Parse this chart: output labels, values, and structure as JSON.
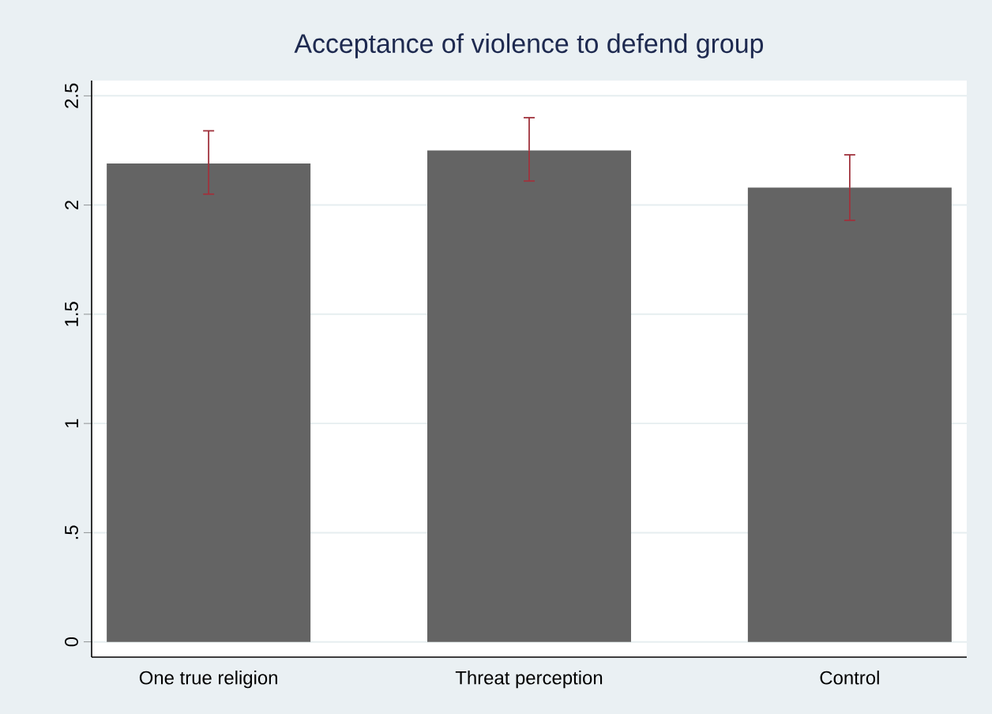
{
  "chart_data": {
    "type": "bar",
    "title": "Acceptance of violence to defend group",
    "categories": [
      "One true religion",
      "Threat perception",
      "Control"
    ],
    "values": [
      2.19,
      2.25,
      2.08
    ],
    "errors": [
      [
        2.05,
        2.34
      ],
      [
        2.11,
        2.4
      ],
      [
        1.93,
        2.23
      ]
    ],
    "color": "#646464",
    "ylim": [
      -0.07,
      2.57
    ],
    "yticks": [
      0,
      {
        "value": 0.5,
        "label": ".5"
      },
      1,
      1.5,
      2,
      2.5
    ],
    "grid": "y"
  }
}
